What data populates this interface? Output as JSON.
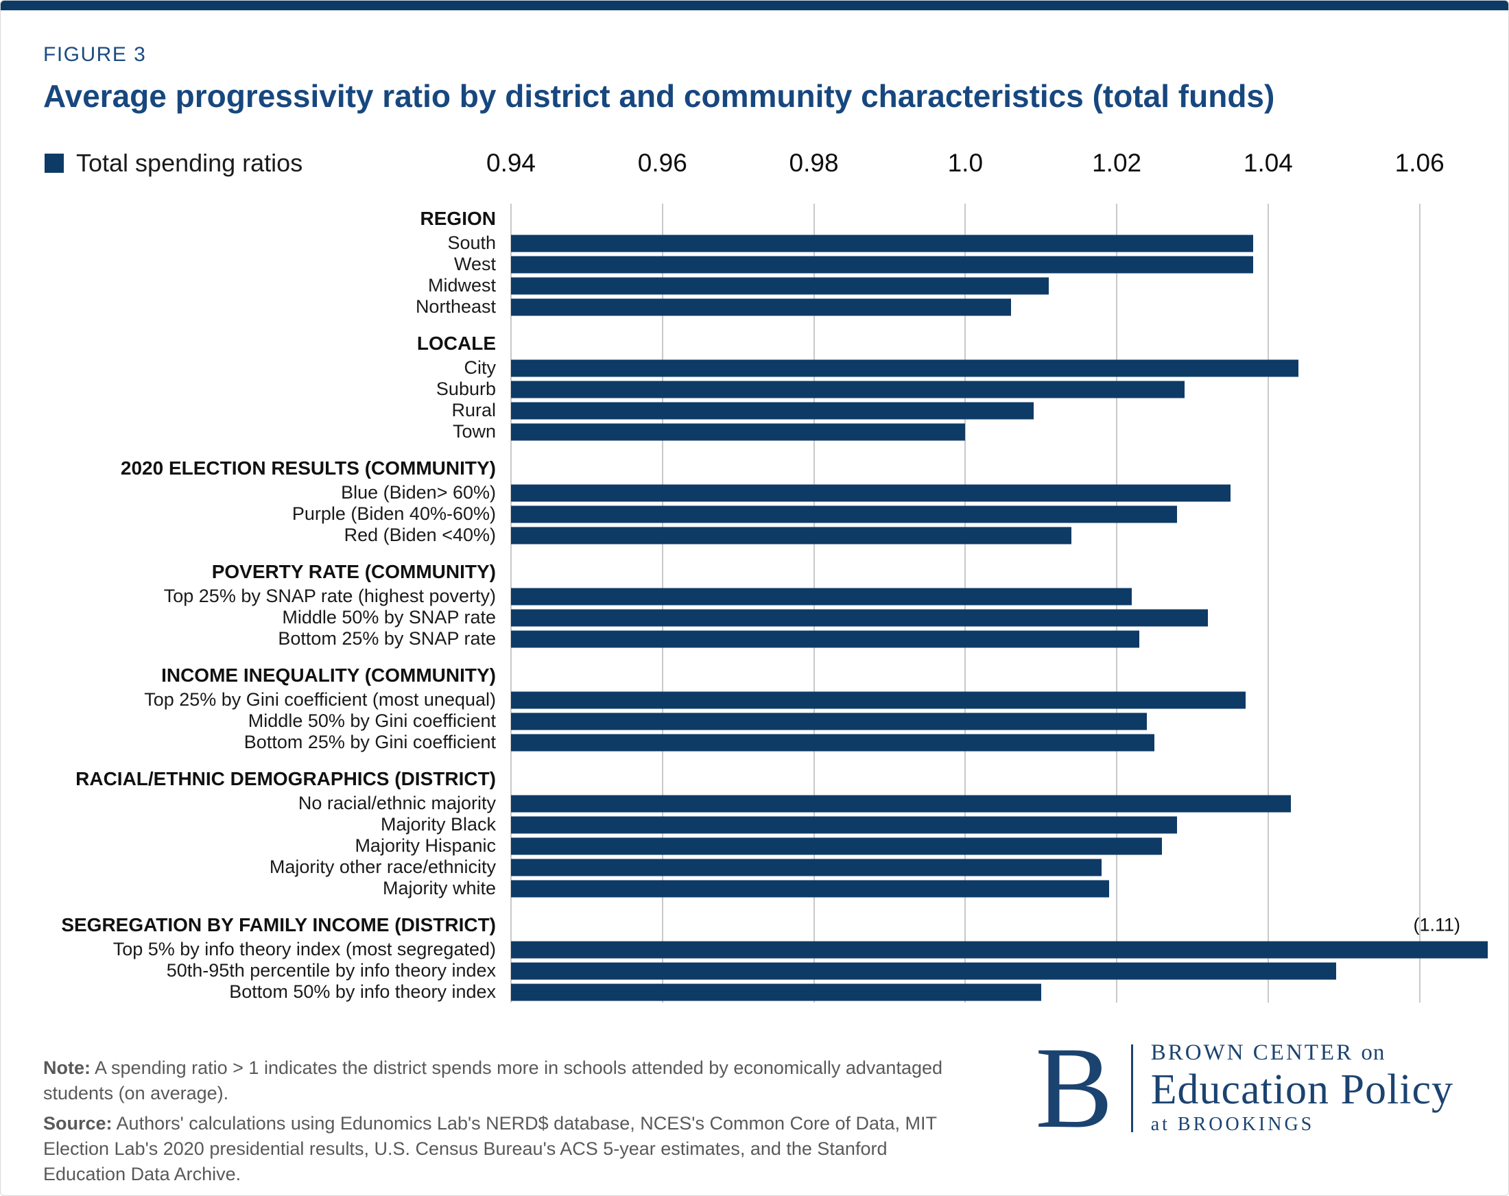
{
  "figure_label": "FIGURE 3",
  "title": "Average progressivity ratio by district and community characteristics (total funds)",
  "legend": {
    "label": "Total spending ratios",
    "color": "#0e3a66"
  },
  "chart_data": {
    "type": "bar",
    "orientation": "horizontal",
    "bar_color": "#0e3a66",
    "axis": {
      "min": 0.94,
      "max": 1.06,
      "clip_max": 1.069,
      "ticks": [
        0.94,
        0.96,
        0.98,
        1.0,
        1.02,
        1.04,
        1.06
      ],
      "tick_labels": [
        "0.94",
        "0.96",
        "0.98",
        "1.0",
        "1.02",
        "1.04",
        "1.06"
      ],
      "grid": true
    },
    "groups": [
      {
        "header": "REGION",
        "rows": [
          {
            "label": "South",
            "value": 1.038
          },
          {
            "label": "West",
            "value": 1.038
          },
          {
            "label": "Midwest",
            "value": 1.011
          },
          {
            "label": "Northeast",
            "value": 1.006
          }
        ]
      },
      {
        "header": "LOCALE",
        "rows": [
          {
            "label": "City",
            "value": 1.044
          },
          {
            "label": "Suburb",
            "value": 1.029
          },
          {
            "label": "Rural",
            "value": 1.009
          },
          {
            "label": "Town",
            "value": 1.0
          }
        ]
      },
      {
        "header": "2020 ELECTION RESULTS (COMMUNITY)",
        "rows": [
          {
            "label": "Blue (Biden> 60%)",
            "value": 1.035
          },
          {
            "label": "Purple (Biden 40%-60%)",
            "value": 1.028
          },
          {
            "label": "Red (Biden <40%)",
            "value": 1.014
          }
        ]
      },
      {
        "header": "POVERTY RATE (COMMUNITY)",
        "rows": [
          {
            "label": "Top 25% by SNAP rate (highest poverty)",
            "value": 1.022
          },
          {
            "label": "Middle 50% by SNAP rate",
            "value": 1.032
          },
          {
            "label": "Bottom 25% by SNAP rate",
            "value": 1.023
          }
        ]
      },
      {
        "header": "INCOME INEQUALITY (COMMUNITY)",
        "rows": [
          {
            "label": "Top 25% by Gini coefficient (most unequal)",
            "value": 1.037
          },
          {
            "label": "Middle 50% by Gini coefficient",
            "value": 1.024
          },
          {
            "label": "Bottom 25% by Gini coefficient",
            "value": 1.025
          }
        ]
      },
      {
        "header": "RACIAL/ETHNIC DEMOGRAPHICS (DISTRICT)",
        "rows": [
          {
            "label": "No racial/ethnic majority",
            "value": 1.043
          },
          {
            "label": "Majority Black",
            "value": 1.028
          },
          {
            "label": "Majority Hispanic",
            "value": 1.026
          },
          {
            "label": "Majority other race/ethnicity",
            "value": 1.018
          },
          {
            "label": "Majority white",
            "value": 1.019
          }
        ]
      },
      {
        "header": "SEGREGATION BY FAMILY INCOME (DISTRICT)",
        "annotation": "(1.11)",
        "rows": [
          {
            "label": "Top 5% by info theory index (most segregated)",
            "value": 1.11,
            "clipped": true
          },
          {
            "label": "50th-95th percentile by info theory index",
            "value": 1.049
          },
          {
            "label": "Bottom 50% by info theory index",
            "value": 1.01
          }
        ]
      }
    ],
    "title": "Average progressivity ratio by district and community characteristics (total funds)",
    "xlabel": "",
    "ylabel": "",
    "legend_entries": [
      "Total spending ratios"
    ],
    "legend_position": "top-left"
  },
  "note": {
    "label": "Note:",
    "text": "A spending ratio > 1 indicates the district spends more in schools attended by economically advantaged students (on average).",
    "source_label": "Source:",
    "source_text": "Authors' calculations using Edunomics Lab's NERD$ database, NCES's Common Core of Data, MIT Election Lab's 2020 presidential results, U.S. Census Bureau's ACS 5-year estimates, and the Stanford Education Data Archive."
  },
  "logo": {
    "b": "B",
    "line1_caps": "BROWN CENTER",
    "line1_tail": "on",
    "line2": "Education Policy",
    "line3_tail": "at",
    "line3_caps": "BROOKINGS"
  }
}
